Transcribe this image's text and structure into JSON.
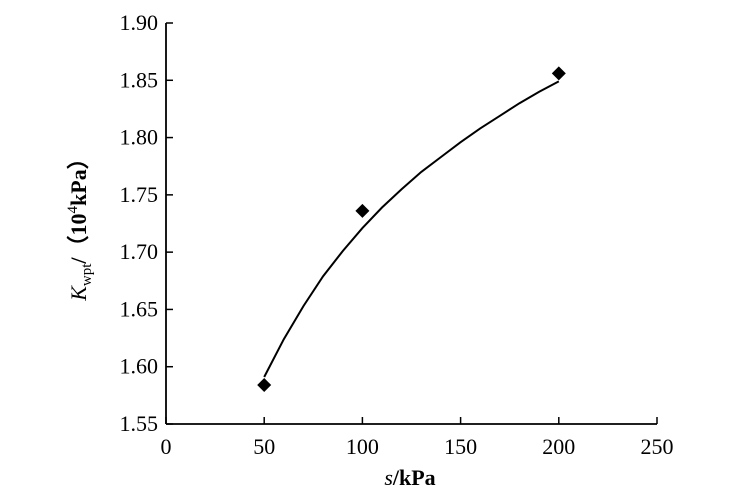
{
  "chart_data": {
    "type": "scatter",
    "title": "",
    "x_axis": {
      "label_symbol": "s",
      "label_unit": "/kPa",
      "min": 0,
      "max": 250,
      "ticks": [
        0,
        50,
        100,
        150,
        200,
        250
      ],
      "tick_labels": [
        "0",
        "50",
        "100",
        "150",
        "200",
        "250"
      ]
    },
    "y_axis": {
      "label_symbol": "K",
      "label_subscript": "wpt",
      "label_unit_open": "/（10",
      "label_unit_sup": "4",
      "label_unit_close": "kPa）",
      "min": 1.55,
      "max": 1.9,
      "ticks": [
        1.55,
        1.6,
        1.65,
        1.7,
        1.75,
        1.8,
        1.85,
        1.9
      ],
      "tick_labels": [
        "1.55",
        "1.60",
        "1.65",
        "1.70",
        "1.75",
        "1.80",
        "1.85",
        "1.90"
      ]
    },
    "series": [
      {
        "marker": "diamond",
        "color": "#000000",
        "x": [
          50,
          100,
          200
        ],
        "y": [
          1.584,
          1.736,
          1.856
        ]
      }
    ],
    "fit_curve": {
      "color": "#000000",
      "x": [
        50,
        60,
        70,
        80,
        90,
        100,
        110,
        120,
        130,
        140,
        150,
        160,
        170,
        180,
        190,
        200
      ],
      "y": [
        1.591,
        1.624,
        1.653,
        1.679,
        1.701,
        1.721,
        1.739,
        1.755,
        1.77,
        1.783,
        1.796,
        1.808,
        1.819,
        1.83,
        1.84,
        1.849
      ]
    },
    "grid": false,
    "legend": "none"
  }
}
